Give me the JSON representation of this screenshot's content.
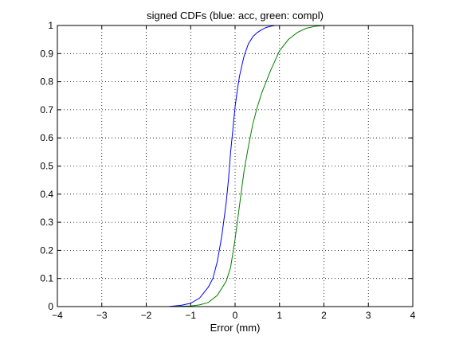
{
  "chart_data": {
    "type": "line",
    "title": "signed CDFs (blue: acc, green: compl)",
    "xlabel": "Error (mm)",
    "ylabel": "",
    "xlim": [
      -4,
      4
    ],
    "ylim": [
      0,
      1
    ],
    "xticks": [
      -4,
      -3,
      -2,
      -1,
      0,
      1,
      2,
      3,
      4
    ],
    "xtick_labels": [
      "−4",
      "−3",
      "−2",
      "−1",
      "0",
      "1",
      "2",
      "3",
      "4"
    ],
    "yticks": [
      0,
      0.1,
      0.2,
      0.3,
      0.4,
      0.5,
      0.6,
      0.7,
      0.8,
      0.9,
      1
    ],
    "ytick_labels": [
      "0",
      "0.1",
      "0.2",
      "0.3",
      "0.4",
      "0.5",
      "0.6",
      "0.7",
      "0.8",
      "0.9",
      "1"
    ],
    "grid": true,
    "series": [
      {
        "color": "#0000ff",
        "x": [
          -2.0,
          -1.5,
          -1.2,
          -1.0,
          -0.8,
          -0.6,
          -0.5,
          -0.4,
          -0.3,
          -0.2,
          -0.15,
          -0.1,
          -0.05,
          0.0,
          0.05,
          0.1,
          0.2,
          0.3,
          0.4,
          0.5,
          0.6,
          0.7,
          0.8,
          0.9,
          1.0
        ],
        "y": [
          0.0,
          0.0,
          0.005,
          0.012,
          0.03,
          0.07,
          0.1,
          0.16,
          0.25,
          0.37,
          0.45,
          0.55,
          0.63,
          0.71,
          0.77,
          0.82,
          0.89,
          0.935,
          0.96,
          0.975,
          0.985,
          0.993,
          0.997,
          1.0,
          1.0
        ]
      },
      {
        "color": "#008000",
        "x": [
          -2.0,
          -1.5,
          -1.0,
          -0.8,
          -0.6,
          -0.4,
          -0.2,
          -0.1,
          0.0,
          0.1,
          0.2,
          0.3,
          0.4,
          0.5,
          0.6,
          0.7,
          0.8,
          1.0,
          1.2,
          1.4,
          1.6,
          1.8,
          2.0,
          2.5,
          4.0
        ],
        "y": [
          0.0,
          0.0,
          0.002,
          0.006,
          0.015,
          0.04,
          0.09,
          0.14,
          0.24,
          0.36,
          0.48,
          0.57,
          0.65,
          0.71,
          0.76,
          0.8,
          0.84,
          0.91,
          0.95,
          0.975,
          0.99,
          0.997,
          1.0,
          1.0,
          1.0
        ]
      }
    ]
  }
}
